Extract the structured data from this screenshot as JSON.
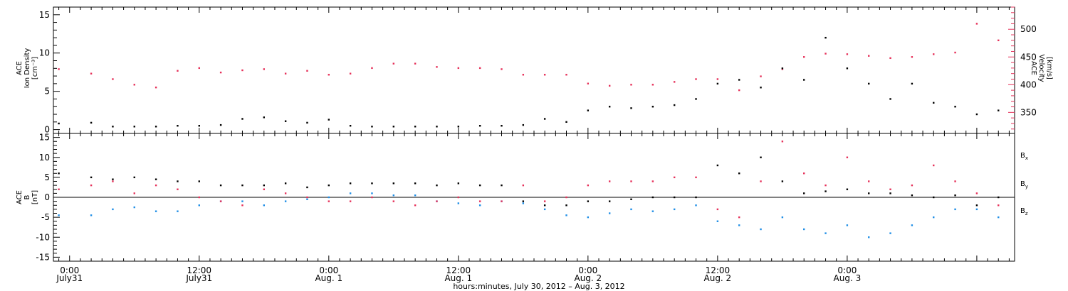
{
  "colors": {
    "black": "#000000",
    "pink": "#e6315a",
    "blue": "#1f8ee6"
  },
  "caption": "hours:minutes, July 30, 2012 – Aug. 3, 2012",
  "chart_data": [
    {
      "type": "scatter",
      "title": "",
      "x_unit": "hours after 2012-07-31 00:00 UT",
      "xlim": [
        -1.5,
        87.5
      ],
      "ylim": [
        -0.5,
        16
      ],
      "yticks": [
        0,
        5,
        10,
        15
      ],
      "y2lim": [
        312,
        540
      ],
      "y2ticks": [
        350,
        400,
        450,
        500
      ],
      "ylabel": [
        "ACE",
        "Ion Density",
        "[cm⁻³]"
      ],
      "y2label": [
        "ACE",
        "Velocity",
        "[km/s]"
      ],
      "grid": false,
      "legend": "none",
      "series": [
        {
          "name": "Ion Density",
          "axis": "left",
          "color": "#000000",
          "x": [
            -1,
            2,
            4,
            6,
            8,
            10,
            12,
            14,
            16,
            18,
            20,
            22,
            24,
            26,
            28,
            30,
            32,
            34,
            36,
            38,
            40,
            42,
            44,
            46,
            48,
            50,
            52,
            54,
            56,
            58,
            60,
            62,
            64,
            66,
            68,
            70,
            72,
            74,
            76,
            78,
            80,
            82,
            84,
            86
          ],
          "y": [
            0.8,
            0.9,
            0.4,
            0.4,
            0.4,
            0.5,
            0.5,
            0.6,
            1.4,
            1.6,
            1.1,
            0.9,
            1.3,
            0.5,
            0.4,
            0.4,
            0.4,
            0.4,
            0.4,
            0.5,
            0.5,
            0.6,
            1.4,
            1.0,
            2.5,
            3.0,
            2.8,
            3.0,
            3.2,
            4.0,
            6.0,
            6.5,
            5.5,
            8.0,
            6.5,
            12.0,
            8.0,
            6.0,
            4.0,
            6.0,
            3.5,
            3.0,
            2.0,
            2.5
          ]
        },
        {
          "name": "Velocity",
          "axis": "right",
          "color": "#e6315a",
          "x": [
            -1,
            2,
            4,
            6,
            8,
            10,
            12,
            14,
            16,
            18,
            20,
            22,
            24,
            26,
            28,
            30,
            32,
            34,
            36,
            38,
            40,
            42,
            44,
            46,
            48,
            50,
            52,
            54,
            56,
            58,
            60,
            62,
            64,
            66,
            68,
            70,
            72,
            74,
            76,
            78,
            80,
            82,
            84,
            86
          ],
          "y": [
            428,
            420,
            410,
            400,
            395,
            425,
            430,
            422,
            426,
            428,
            420,
            425,
            418,
            420,
            430,
            438,
            438,
            432,
            430,
            430,
            428,
            418,
            418,
            418,
            402,
            398,
            400,
            400,
            405,
            410,
            410,
            390,
            415,
            428,
            450,
            456,
            455,
            452,
            448,
            450,
            455,
            458,
            510,
            480
          ]
        }
      ]
    },
    {
      "type": "scatter",
      "title": "",
      "x_unit": "hours after 2012-07-31 00:00 UT",
      "xlim": [
        -1.5,
        87.5
      ],
      "ylim": [
        -16,
        16
      ],
      "yticks": [
        -15,
        -10,
        -5,
        0,
        5,
        10,
        15
      ],
      "ylabel": [
        "ACE",
        "B",
        "[nT]"
      ],
      "xticks": [
        {
          "x": 0,
          "time": "0:00",
          "date": "July31"
        },
        {
          "x": 12,
          "time": "12:00",
          "date": "July31"
        },
        {
          "x": 24,
          "time": "0:00",
          "date": "Aug. 1"
        },
        {
          "x": 36,
          "time": "12:00",
          "date": "Aug. 1"
        },
        {
          "x": 48,
          "time": "0:00",
          "date": "Aug. 2"
        },
        {
          "x": 60,
          "time": "12:00",
          "date": "Aug. 2"
        },
        {
          "x": 72,
          "time": "0:00",
          "date": "Aug. 3"
        }
      ],
      "grid": false,
      "legend": "right",
      "series": [
        {
          "name": "Bx",
          "color": "#000000",
          "x": [
            -1,
            2,
            4,
            6,
            8,
            10,
            12,
            14,
            16,
            18,
            20,
            22,
            24,
            26,
            28,
            30,
            32,
            34,
            36,
            38,
            40,
            42,
            44,
            46,
            48,
            50,
            52,
            54,
            56,
            58,
            60,
            62,
            64,
            66,
            68,
            70,
            72,
            74,
            76,
            78,
            80,
            82,
            84,
            86
          ],
          "y": [
            6,
            5,
            4.5,
            5,
            4.5,
            4,
            4,
            3,
            3,
            3,
            3.5,
            2.5,
            3,
            3.5,
            3.5,
            3.5,
            3.5,
            3,
            3.5,
            3,
            3,
            -1,
            -2,
            -2,
            -1,
            -1,
            -0.5,
            0,
            0,
            0,
            8,
            6,
            10,
            4,
            1,
            1.5,
            2,
            1,
            1,
            0.5,
            0,
            0.5,
            -2,
            0
          ]
        },
        {
          "name": "By",
          "color": "#1f8ee6",
          "x": [
            -1,
            2,
            4,
            6,
            8,
            10,
            12,
            14,
            16,
            18,
            20,
            22,
            24,
            26,
            28,
            30,
            32,
            34,
            36,
            38,
            40,
            42,
            44,
            46,
            48,
            50,
            52,
            54,
            56,
            58,
            60,
            62,
            64,
            66,
            68,
            70,
            72,
            74,
            76,
            78,
            80,
            82,
            84,
            86
          ],
          "y": [
            -4.5,
            -4.5,
            -3,
            -2.5,
            -3.5,
            -3.5,
            -2,
            -1,
            -1,
            -2,
            -1,
            -0.5,
            0,
            1,
            1,
            0.5,
            0.5,
            -1,
            -1.5,
            -2,
            -1,
            -1.5,
            -3,
            -4.5,
            -5,
            -4,
            -3,
            -3.5,
            -3,
            -2,
            -6,
            -7,
            -8,
            -5,
            -8,
            -9,
            -7,
            -10,
            -9,
            -7,
            -5,
            -3,
            -3,
            -5
          ]
        },
        {
          "name": "Bz",
          "color": "#e6315a",
          "x": [
            -1,
            2,
            4,
            6,
            8,
            10,
            12,
            14,
            16,
            18,
            20,
            22,
            24,
            26,
            28,
            30,
            32,
            34,
            36,
            38,
            40,
            42,
            44,
            46,
            48,
            50,
            52,
            54,
            56,
            58,
            60,
            62,
            64,
            66,
            68,
            70,
            72,
            74,
            76,
            78,
            80,
            82,
            84,
            86
          ],
          "y": [
            2,
            3,
            4,
            1,
            3,
            2,
            0,
            -1,
            -2,
            2,
            1,
            0,
            -1,
            -1,
            0,
            -1,
            -2,
            -1,
            0,
            -1,
            -1,
            3,
            -1,
            0,
            3,
            4,
            4,
            4,
            5,
            5,
            -3,
            -5,
            4,
            14,
            6,
            3,
            10,
            4,
            2,
            3,
            8,
            4,
            1,
            -2
          ]
        }
      ]
    }
  ]
}
